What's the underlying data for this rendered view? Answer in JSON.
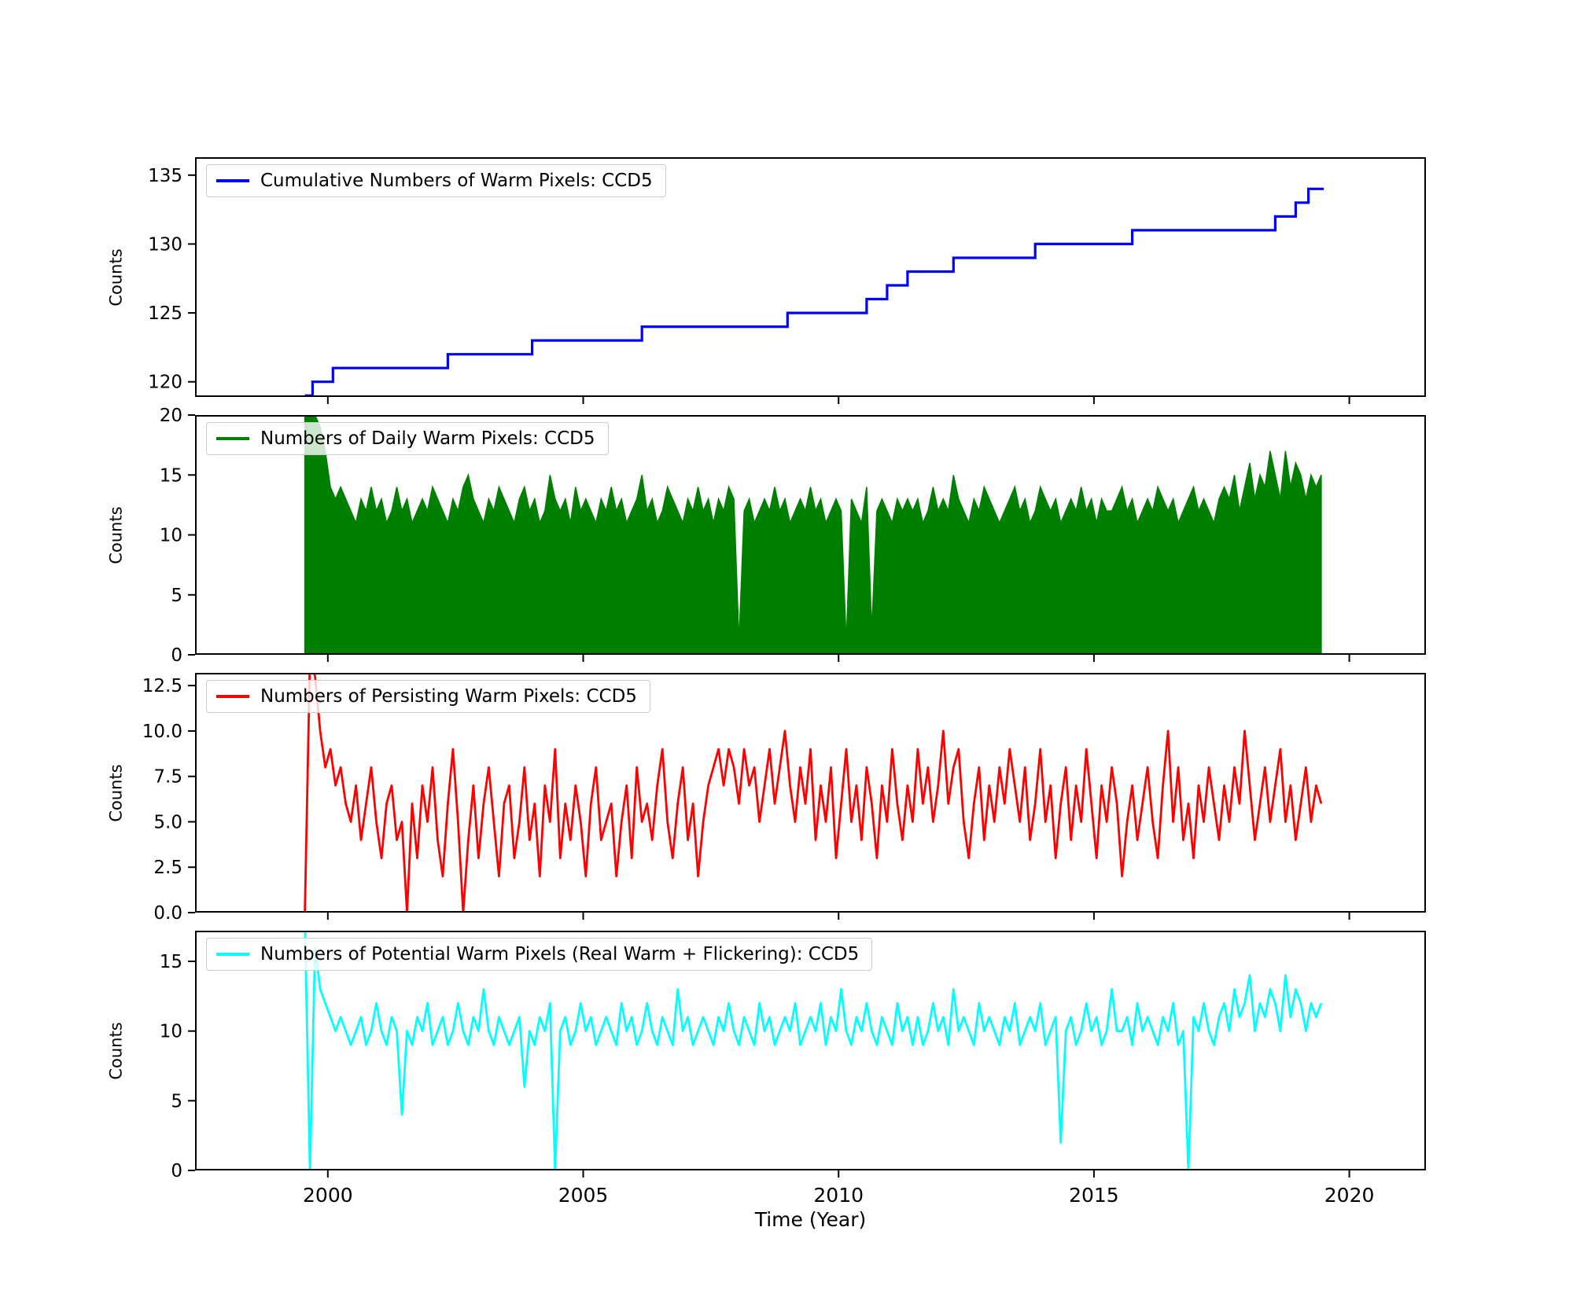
{
  "chart_data": {
    "type": "line",
    "title": "",
    "xlabel": "Time (Year)",
    "xlim": [
      1997.4,
      2021.5
    ],
    "xticks": [
      2000,
      2005,
      2010,
      2015,
      2020
    ],
    "xtick_labels": [
      "2000",
      "2005",
      "2010",
      "2015",
      "2020"
    ],
    "legend_position": "upper left",
    "grid": false,
    "panels": [
      {
        "type": "step",
        "label": "Cumulative Numbers of Warm Pixels: CCD5",
        "color": "#0000ff",
        "ylabel": "Counts",
        "ylim": [
          118.9,
          136.3
        ],
        "yticks": [
          120,
          125,
          130,
          135
        ],
        "ytick_labels": [
          "120",
          "125",
          "130",
          "135"
        ],
        "step_points": [
          [
            1999.55,
            119
          ],
          [
            1999.7,
            120
          ],
          [
            2000.1,
            121
          ],
          [
            2002.35,
            122
          ],
          [
            2004.0,
            123
          ],
          [
            2006.15,
            124
          ],
          [
            2009.0,
            125
          ],
          [
            2010.55,
            126
          ],
          [
            2010.95,
            127
          ],
          [
            2011.35,
            128
          ],
          [
            2012.25,
            129
          ],
          [
            2013.85,
            130
          ],
          [
            2015.75,
            131
          ],
          [
            2018.55,
            132
          ],
          [
            2018.95,
            133
          ],
          [
            2019.2,
            134
          ],
          [
            2019.5,
            134
          ]
        ]
      },
      {
        "type": "area",
        "label": "Numbers of Daily Warm Pixels: CCD5",
        "color": "#008000",
        "ylabel": "Counts",
        "ylim": [
          0,
          20
        ],
        "yticks": [
          0,
          5,
          10,
          15,
          20
        ],
        "ytick_labels": [
          "0",
          "5",
          "10",
          "15",
          "20"
        ],
        "x_start": 1999.55,
        "dt": 0.1,
        "values": [
          20,
          20,
          20,
          19,
          17,
          14,
          13,
          14,
          13,
          12,
          11,
          13,
          12,
          14,
          12,
          13,
          11,
          12,
          14,
          12,
          13,
          11,
          12,
          13,
          12,
          14,
          13,
          12,
          11,
          13,
          12,
          14,
          15,
          13,
          12,
          11,
          13,
          12,
          14,
          13,
          12,
          11,
          13,
          14,
          12,
          13,
          11,
          12,
          15,
          13,
          12,
          13,
          11,
          14,
          12,
          13,
          12,
          11,
          13,
          12,
          14,
          12,
          13,
          11,
          12,
          13,
          15,
          12,
          13,
          11,
          12,
          14,
          13,
          12,
          11,
          13,
          12,
          14,
          12,
          13,
          11,
          13,
          12,
          14,
          13,
          1,
          12,
          13,
          11,
          12,
          13,
          12,
          14,
          12,
          13,
          11,
          12,
          13,
          12,
          14,
          12,
          13,
          11,
          12,
          13,
          12,
          1,
          13,
          12,
          11,
          14,
          2,
          12,
          13,
          12,
          11,
          13,
          12,
          13,
          12,
          13,
          11,
          12,
          14,
          12,
          13,
          12,
          15,
          13,
          12,
          11,
          13,
          12,
          14,
          13,
          12,
          11,
          12,
          13,
          14,
          12,
          13,
          11,
          12,
          14,
          13,
          12,
          13,
          11,
          12,
          13,
          12,
          14,
          12,
          13,
          11,
          13,
          12,
          12,
          13,
          14,
          12,
          13,
          11,
          12,
          13,
          12,
          14,
          13,
          12,
          13,
          11,
          12,
          13,
          14,
          12,
          13,
          12,
          11,
          13,
          14,
          13,
          15,
          12,
          14,
          16,
          13,
          15,
          14,
          17,
          15,
          13,
          17,
          14,
          16,
          15,
          13,
          15,
          14,
          15
        ]
      },
      {
        "type": "line",
        "label": "Numbers of Persisting Warm Pixels: CCD5",
        "color": "#ff0000",
        "ylabel": "Counts",
        "ylim": [
          0,
          13.2
        ],
        "yticks": [
          0,
          2.5,
          5,
          7.5,
          10,
          12.5
        ],
        "ytick_labels": [
          "0.0",
          "2.5",
          "5.0",
          "7.5",
          "10.0",
          "12.5"
        ],
        "x_start": 1999.55,
        "dt": 0.1,
        "values": [
          0,
          14,
          13,
          10,
          8,
          9,
          7,
          8,
          6,
          5,
          7,
          4,
          6,
          8,
          5,
          3,
          6,
          7,
          4,
          5,
          0,
          6,
          3,
          7,
          5,
          8,
          4,
          2,
          6,
          9,
          5,
          0,
          4,
          7,
          3,
          6,
          8,
          5,
          2,
          6,
          7,
          3,
          5,
          8,
          4,
          6,
          2,
          7,
          5,
          9,
          3,
          6,
          4,
          7,
          5,
          2,
          6,
          8,
          4,
          5,
          6,
          2,
          5,
          7,
          3,
          8,
          5,
          6,
          4,
          7,
          9,
          5,
          3,
          6,
          8,
          4,
          6,
          2,
          5,
          7,
          8,
          9,
          7,
          9,
          8,
          6,
          9,
          7,
          8,
          5,
          7,
          9,
          6,
          8,
          10,
          7,
          5,
          8,
          6,
          9,
          4,
          7,
          5,
          8,
          3,
          6,
          9,
          5,
          7,
          4,
          8,
          6,
          3,
          7,
          5,
          9,
          6,
          4,
          7,
          5,
          9,
          6,
          8,
          5,
          7,
          10,
          6,
          8,
          9,
          5,
          3,
          6,
          8,
          4,
          7,
          5,
          8,
          6,
          9,
          7,
          5,
          8,
          4,
          6,
          9,
          5,
          7,
          3,
          6,
          8,
          4,
          7,
          5,
          9,
          6,
          3,
          7,
          5,
          8,
          6,
          2,
          5,
          7,
          4,
          6,
          8,
          5,
          3,
          7,
          10,
          5,
          8,
          4,
          6,
          3,
          7,
          5,
          8,
          6,
          4,
          7,
          5,
          8,
          6,
          10,
          7,
          4,
          6,
          8,
          5,
          7,
          9,
          5,
          7,
          4,
          6,
          8,
          5,
          7,
          6
        ]
      },
      {
        "type": "line",
        "label": "Numbers of Potential Warm Pixels (Real Warm + Flickering): CCD5",
        "color": "#00ffff",
        "ylabel": "Counts",
        "ylim": [
          0,
          17.2
        ],
        "yticks": [
          0,
          5,
          10,
          15
        ],
        "ytick_labels": [
          "0",
          "5",
          "10",
          "15"
        ],
        "x_start": 1999.55,
        "dt": 0.1,
        "values": [
          18,
          0,
          16,
          13,
          12,
          11,
          10,
          11,
          10,
          9,
          10,
          11,
          9,
          10,
          12,
          10,
          9,
          11,
          10,
          4,
          10,
          9,
          11,
          10,
          12,
          9,
          10,
          11,
          9,
          10,
          12,
          10,
          9,
          11,
          10,
          13,
          10,
          9,
          11,
          10,
          9,
          10,
          11,
          6,
          10,
          9,
          11,
          10,
          12,
          0,
          10,
          11,
          9,
          10,
          12,
          10,
          11,
          9,
          10,
          11,
          10,
          9,
          12,
          10,
          11,
          9,
          10,
          12,
          10,
          9,
          11,
          10,
          9,
          13,
          10,
          11,
          9,
          10,
          11,
          10,
          9,
          11,
          10,
          12,
          10,
          9,
          11,
          10,
          9,
          12,
          10,
          11,
          9,
          10,
          11,
          10,
          12,
          9,
          10,
          11,
          10,
          12,
          9,
          11,
          10,
          13,
          10,
          9,
          11,
          10,
          12,
          10,
          9,
          11,
          10,
          9,
          12,
          10,
          11,
          9,
          11,
          9,
          10,
          12,
          10,
          11,
          9,
          13,
          10,
          11,
          10,
          9,
          12,
          10,
          11,
          10,
          9,
          11,
          10,
          12,
          9,
          10,
          11,
          10,
          12,
          9,
          10,
          11,
          2,
          10,
          11,
          9,
          10,
          12,
          10,
          11,
          9,
          10,
          13,
          10,
          10,
          11,
          9,
          12,
          10,
          11,
          10,
          9,
          11,
          10,
          12,
          9,
          10,
          0,
          11,
          10,
          12,
          10,
          9,
          11,
          12,
          10,
          13,
          11,
          12,
          14,
          10,
          12,
          11,
          13,
          12,
          10,
          14,
          11,
          13,
          12,
          10,
          12,
          11,
          12
        ]
      }
    ]
  }
}
